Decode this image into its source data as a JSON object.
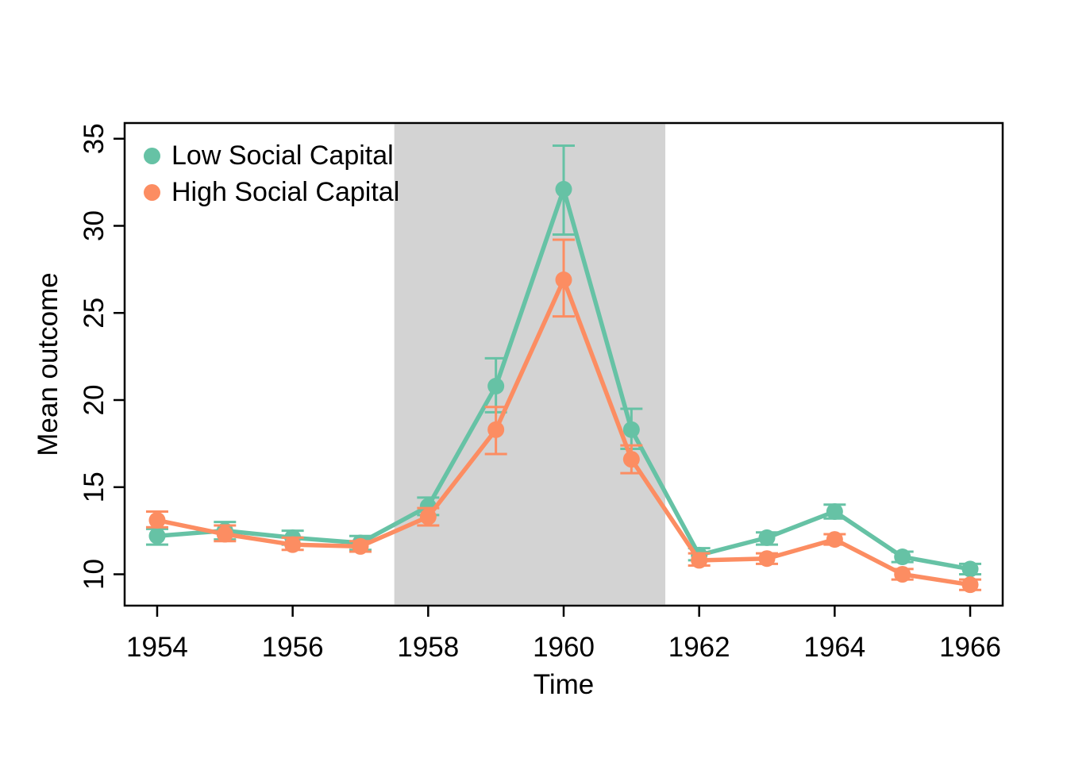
{
  "figure": {
    "background": "#ffffff",
    "axis_color": "#000000",
    "text_color": "#000000"
  },
  "chart_data": {
    "type": "line",
    "title": "",
    "xlabel": "Time",
    "ylabel": "Mean outcome",
    "x": [
      1954,
      1955,
      1956,
      1957,
      1958,
      1959,
      1960,
      1961,
      1962,
      1963,
      1964,
      1965,
      1966
    ],
    "xticks": [
      1954,
      1956,
      1958,
      1960,
      1962,
      1964,
      1966
    ],
    "yticks": [
      10,
      15,
      20,
      25,
      30,
      35
    ],
    "xlim": [
      1953.52,
      1966.48
    ],
    "ylim": [
      8.2,
      35.9
    ],
    "grid": false,
    "legend_position": "top-left",
    "shaded_region": {
      "x_start": 1957.5,
      "x_end": 1961.5,
      "color": "#d3d3d3"
    },
    "series": [
      {
        "name": "Low Social Capital",
        "color": "#66c2a5",
        "marker": "circle",
        "values": [
          12.2,
          12.5,
          12.1,
          11.8,
          13.9,
          20.8,
          32.1,
          18.3,
          11.1,
          12.1,
          13.6,
          11.0,
          10.3
        ],
        "err_low": [
          11.7,
          12.0,
          11.7,
          11.4,
          13.4,
          19.3,
          29.5,
          17.2,
          10.8,
          11.7,
          13.2,
          10.7,
          10.0
        ],
        "err_high": [
          12.6,
          13.0,
          12.5,
          12.2,
          14.4,
          22.4,
          34.6,
          19.5,
          11.5,
          12.4,
          14.0,
          11.3,
          10.6
        ]
      },
      {
        "name": "High Social Capital",
        "color": "#fc8d62",
        "marker": "circle",
        "values": [
          13.1,
          12.3,
          11.7,
          11.6,
          13.3,
          18.3,
          26.9,
          16.6,
          10.8,
          10.9,
          12.0,
          10.0,
          9.4
        ],
        "err_low": [
          12.7,
          11.9,
          11.4,
          11.3,
          12.8,
          16.9,
          24.8,
          15.8,
          10.5,
          10.6,
          11.7,
          9.7,
          9.1
        ],
        "err_high": [
          13.6,
          12.8,
          12.1,
          11.9,
          13.8,
          19.6,
          29.2,
          17.4,
          11.2,
          11.2,
          12.3,
          10.3,
          9.7
        ]
      }
    ]
  }
}
